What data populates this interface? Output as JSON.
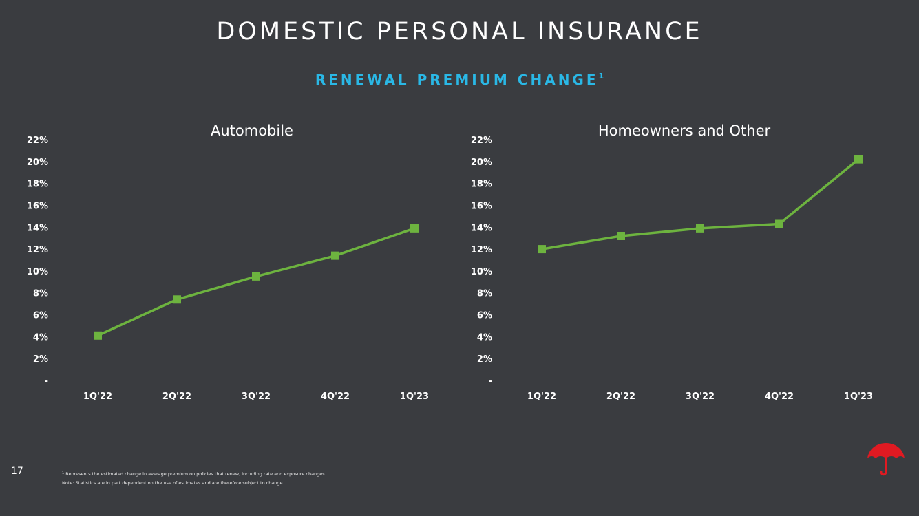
{
  "slide": {
    "title": "DOMESTIC PERSONAL INSURANCE",
    "subtitle": "RENEWAL PREMIUM CHANGE",
    "subtitle_footnote_ref": "1",
    "page_number": "17",
    "footnote_1_marker": "1",
    "footnote_1": "Represents the estimated change in average premium on policies that renew, including rate and exposure changes.",
    "note": "Note: Statistics are in part dependent on the use of estimates and are therefore subject to change.",
    "logo_icon": "umbrella-icon"
  },
  "colors": {
    "background": "#3a3c40",
    "accent": "#2ab8e6",
    "series": "#6db33f",
    "logo": "#e01a22"
  },
  "chart_data": [
    {
      "type": "line",
      "title": "Automobile",
      "categories": [
        "1Q'22",
        "2Q'22",
        "3Q'22",
        "4Q'22",
        "1Q'23"
      ],
      "values": [
        4.1,
        7.4,
        9.5,
        11.4,
        13.9
      ],
      "ylim": [
        0,
        22
      ],
      "yticks": [
        0,
        2,
        4,
        6,
        8,
        10,
        12,
        14,
        16,
        18,
        20,
        22
      ],
      "ytick_labels": [
        "-",
        "2%",
        "4%",
        "6%",
        "8%",
        "10%",
        "12%",
        "14%",
        "16%",
        "18%",
        "20%",
        "22%"
      ],
      "xlabel": "",
      "ylabel": "",
      "grid": false,
      "marker": "square"
    },
    {
      "type": "line",
      "title": "Homeowners and Other",
      "categories": [
        "1Q'22",
        "2Q'22",
        "3Q'22",
        "4Q'22",
        "1Q'23"
      ],
      "values": [
        12.0,
        13.2,
        13.9,
        14.3,
        20.2
      ],
      "ylim": [
        0,
        22
      ],
      "yticks": [
        0,
        2,
        4,
        6,
        8,
        10,
        12,
        14,
        16,
        18,
        20,
        22
      ],
      "ytick_labels": [
        "-",
        "2%",
        "4%",
        "6%",
        "8%",
        "10%",
        "12%",
        "14%",
        "16%",
        "18%",
        "20%",
        "22%"
      ],
      "xlabel": "",
      "ylabel": "",
      "grid": false,
      "marker": "square"
    }
  ]
}
